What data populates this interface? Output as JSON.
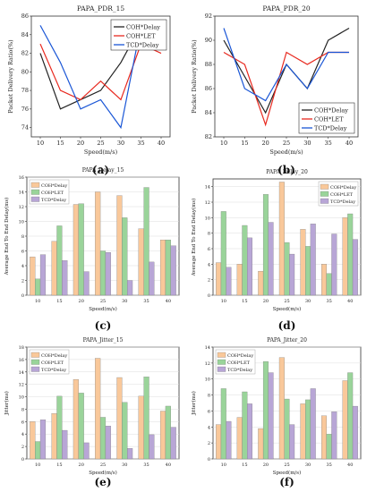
{
  "chart_data": [
    {
      "panel_label": "(a)",
      "type": "line",
      "title": "PAPA_PDR_15",
      "xlabel": "Speed(m/s)",
      "ylabel": "Packet Delivery Ratio(%)",
      "x": [
        10,
        15,
        20,
        25,
        30,
        35,
        40
      ],
      "xticks": [
        "10",
        "15",
        "20",
        "25",
        "30",
        "35",
        "40"
      ],
      "yticks": [
        "74",
        "76",
        "78",
        "80",
        "82",
        "84",
        "86"
      ],
      "ylim": [
        73,
        86
      ],
      "legend_position": "top-right",
      "series": [
        {
          "name": "COH*Delay",
          "color": "#222222",
          "values": [
            82,
            76,
            77,
            78,
            81,
            85,
            85
          ]
        },
        {
          "name": "COH*LET",
          "color": "#e8291f",
          "values": [
            83,
            78,
            77,
            79,
            77,
            83,
            82
          ]
        },
        {
          "name": "TCD*Delay",
          "color": "#1a56d6",
          "values": [
            85,
            81,
            76,
            77,
            74,
            85,
            83
          ]
        }
      ]
    },
    {
      "panel_label": "(b)",
      "type": "line",
      "title": "PAPA_PDR_20",
      "xlabel": "Speed(m/s)",
      "ylabel": "Packet Delivery Ratio(%)",
      "x": [
        10,
        15,
        20,
        25,
        30,
        35,
        40
      ],
      "xticks": [
        "10",
        "15",
        "20",
        "25",
        "30",
        "35",
        "40"
      ],
      "yticks": [
        "82",
        "84",
        "86",
        "88",
        "90",
        "92"
      ],
      "ylim": [
        82,
        92
      ],
      "legend_position": "bottom-right",
      "series": [
        {
          "name": "COH*Delay",
          "color": "#222222",
          "values": [
            90,
            87,
            84,
            88,
            86,
            90,
            91
          ]
        },
        {
          "name": "COH*LET",
          "color": "#e8291f",
          "values": [
            89,
            88,
            83,
            89,
            88,
            89,
            89
          ]
        },
        {
          "name": "TCD*Delay",
          "color": "#1a56d6",
          "values": [
            91,
            86,
            85,
            88,
            86,
            89,
            89
          ]
        }
      ]
    },
    {
      "panel_label": "(c)",
      "type": "bar",
      "title": "PAPA_Delay_15",
      "xlabel": "Speed(m/s)",
      "ylabel": "Average End To End Delay(ms)",
      "categories": [
        "10",
        "15",
        "20",
        "25",
        "30",
        "35",
        "40"
      ],
      "yticks": [
        "0",
        "2",
        "4",
        "6",
        "8",
        "10",
        "12",
        "14",
        "16"
      ],
      "ylim": [
        0,
        16
      ],
      "legend_position": "top-left",
      "series": [
        {
          "name": "COH*Delay",
          "color": "#f9c89a",
          "values": [
            5.2,
            7.3,
            12.3,
            14.0,
            13.5,
            9.0,
            7.5
          ]
        },
        {
          "name": "COH*LET",
          "color": "#9ad49a",
          "values": [
            2.2,
            9.4,
            12.4,
            6.0,
            10.5,
            14.6,
            7.5
          ]
        },
        {
          "name": "TCD*Delay",
          "color": "#b8a6d6",
          "values": [
            5.5,
            4.7,
            3.2,
            5.8,
            2.0,
            4.5,
            6.7
          ]
        }
      ]
    },
    {
      "panel_label": "(d)",
      "type": "bar",
      "title": "PAPA_Delay_20",
      "xlabel": "Speed(m/s)",
      "ylabel": "Average End To End Delay(ms)",
      "categories": [
        "10",
        "15",
        "20",
        "25",
        "30",
        "35",
        "40"
      ],
      "yticks": [
        "0",
        "2",
        "4",
        "6",
        "8",
        "10",
        "12",
        "14"
      ],
      "ylim": [
        0,
        15
      ],
      "legend_position": "top-right",
      "series": [
        {
          "name": "COH*Delay",
          "color": "#f9c89a",
          "values": [
            4.2,
            4.0,
            3.1,
            14.6,
            8.5,
            4.0,
            10.0
          ]
        },
        {
          "name": "COH*LET",
          "color": "#9ad49a",
          "values": [
            10.8,
            9.0,
            13.0,
            6.8,
            6.3,
            2.8,
            10.5
          ]
        },
        {
          "name": "TCD*Delay",
          "color": "#b8a6d6",
          "values": [
            3.6,
            7.4,
            9.4,
            5.3,
            9.2,
            7.9,
            7.2
          ]
        }
      ]
    },
    {
      "panel_label": "(e)",
      "type": "bar",
      "title": "PAPA_Jitter_15",
      "xlabel": "Speed(m/s)",
      "ylabel": "Jitter(ms)",
      "categories": [
        "10",
        "15",
        "20",
        "25",
        "30",
        "35",
        "40"
      ],
      "yticks": [
        "0",
        "2",
        "4",
        "6",
        "8",
        "10",
        "12",
        "14",
        "16",
        "18"
      ],
      "ylim": [
        0,
        18
      ],
      "legend_position": "top-left",
      "series": [
        {
          "name": "COH*Delay",
          "color": "#f9c89a",
          "values": [
            6.0,
            7.3,
            12.8,
            16.2,
            13.1,
            10.1,
            7.7
          ]
        },
        {
          "name": "COH*LET",
          "color": "#9ad49a",
          "values": [
            2.8,
            10.1,
            10.6,
            6.7,
            9.1,
            13.2,
            8.5
          ]
        },
        {
          "name": "TCD*Delay",
          "color": "#b8a6d6",
          "values": [
            6.3,
            4.6,
            2.6,
            5.3,
            1.7,
            3.9,
            5.1
          ]
        }
      ]
    },
    {
      "panel_label": "(f)",
      "type": "bar",
      "title": "PAPA_Jitter_20",
      "xlabel": "Speed(m/s)",
      "ylabel": "Jitter(ms)",
      "categories": [
        "10",
        "15",
        "20",
        "25",
        "30",
        "35",
        "40"
      ],
      "yticks": [
        "0",
        "2",
        "4",
        "6",
        "8",
        "10",
        "12",
        "14"
      ],
      "ylim": [
        0,
        14
      ],
      "legend_position": "top-left",
      "series": [
        {
          "name": "COH*Delay",
          "color": "#f9c89a",
          "values": [
            4.3,
            5.2,
            3.8,
            12.7,
            6.9,
            5.4,
            9.8
          ]
        },
        {
          "name": "COH*LET",
          "color": "#9ad49a",
          "values": [
            8.8,
            8.4,
            12.2,
            7.5,
            7.4,
            3.1,
            10.8
          ]
        },
        {
          "name": "TCD*Delay",
          "color": "#b8a6d6",
          "values": [
            4.7,
            6.9,
            10.8,
            4.3,
            8.8,
            5.9,
            6.6
          ]
        }
      ]
    }
  ]
}
